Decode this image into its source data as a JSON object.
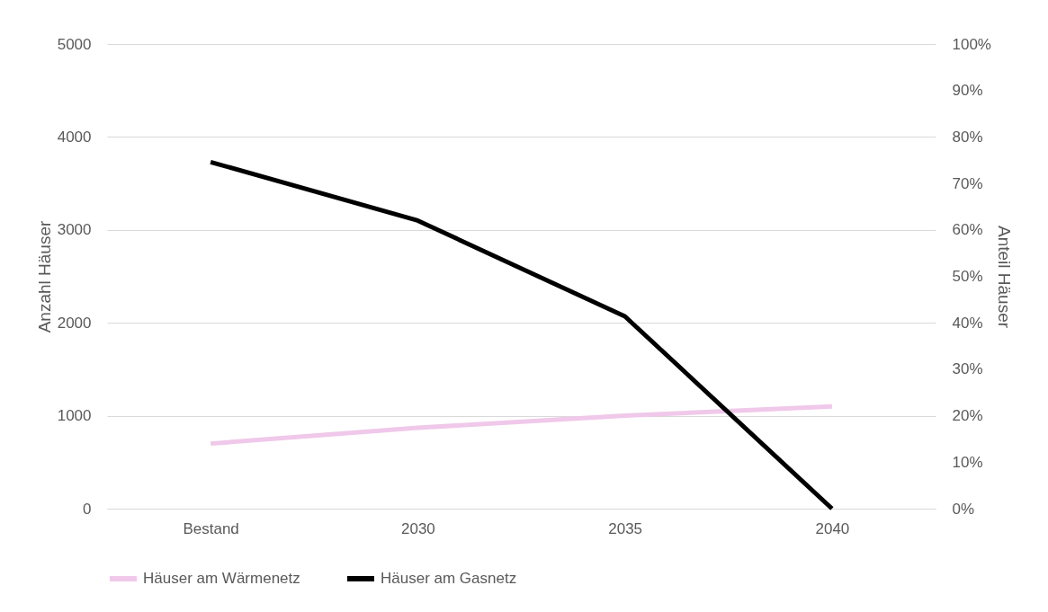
{
  "chart_data": {
    "type": "line",
    "ylabel": "Anzahl Häuser",
    "y2label": "Anteil Häuser",
    "categories": [
      "Bestand",
      "2030",
      "2035",
      "2040"
    ],
    "series": [
      {
        "name": "Häuser am Wärmenetz",
        "color": "#f0c8ea",
        "values": [
          700,
          870,
          1000,
          1100
        ]
      },
      {
        "name": "Häuser am Gasnetz",
        "color": "#000000",
        "values": [
          3730,
          3100,
          2070,
          0
        ]
      }
    ],
    "ylim": [
      0,
      5000
    ],
    "yticks": [
      0,
      1000,
      2000,
      3000,
      4000,
      5000
    ],
    "y2lim": [
      0,
      100
    ],
    "y2ticks": [
      {
        "value": 0,
        "label": "0%"
      },
      {
        "value": 10,
        "label": "10%"
      },
      {
        "value": 20,
        "label": "20%"
      },
      {
        "value": 30,
        "label": "30%"
      },
      {
        "value": 40,
        "label": "40%"
      },
      {
        "value": 50,
        "label": "50%"
      },
      {
        "value": 60,
        "label": "60%"
      },
      {
        "value": 70,
        "label": "70%"
      },
      {
        "value": 80,
        "label": "80%"
      },
      {
        "value": 90,
        "label": "90%"
      },
      {
        "value": 100,
        "label": "100%"
      }
    ],
    "grid": "y",
    "legend": "bottom",
    "marker": "none",
    "line_style": "solid"
  }
}
